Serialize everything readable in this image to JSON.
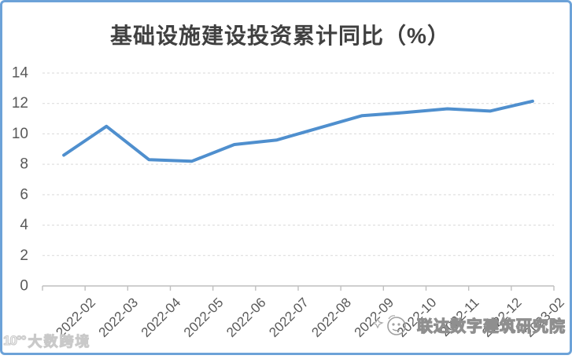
{
  "frame": {
    "border_color": "#6CA2D8",
    "background": "#ffffff"
  },
  "chart_data": {
    "type": "line",
    "title": "基础设施建设投资累计同比（%）",
    "categories": [
      "2022-02",
      "2022-03",
      "2022-04",
      "2022-05",
      "2022-06",
      "2022-07",
      "2022-08",
      "2022-09",
      "2022-10",
      "2022-11",
      "2022-12",
      "2023-02"
    ],
    "series": [
      {
        "name": "基础设施建设投资累计同比",
        "values": [
          8.6,
          10.5,
          8.3,
          8.2,
          9.3,
          9.6,
          10.4,
          11.2,
          11.4,
          11.65,
          11.5,
          12.15
        ]
      }
    ],
    "xlabel": "",
    "ylabel": "",
    "ylim": [
      0,
      14
    ],
    "yticks": [
      0,
      2,
      4,
      6,
      8,
      10,
      12,
      14
    ],
    "grid": "horizontal-dashed",
    "legend_position": "none",
    "style": {
      "line_color": "#4F8FCE",
      "grid_color": "#D9D9D9",
      "axis_color": "#BFBFBF",
      "tick_label_color": "#595959",
      "title_color": "#404040",
      "x_label_rotation_deg": -45
    }
  },
  "watermarks": {
    "bottom_left": {
      "logo": "10°°",
      "text": "大数跨境"
    },
    "bottom_right": {
      "logo": "bird-face",
      "text": "联达数字建筑研究院"
    }
  }
}
